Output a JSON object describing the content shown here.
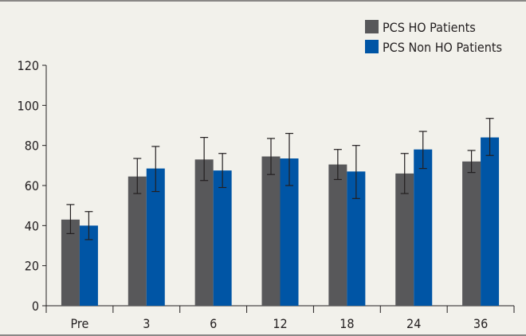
{
  "chart_data": {
    "type": "bar",
    "title": "",
    "xlabel": "",
    "ylabel": "",
    "categories": [
      "Pre",
      "3",
      "6",
      "12",
      "18",
      "24",
      "36"
    ],
    "ylim": [
      0,
      120
    ],
    "yticks": [
      0,
      20,
      40,
      60,
      80,
      100,
      120
    ],
    "grid": false,
    "legend_position": "top-right",
    "series": [
      {
        "name": "PCS HO Patients",
        "color": "#58585a",
        "values": [
          43,
          64.5,
          73,
          74.5,
          70.5,
          66,
          72
        ],
        "error_low": [
          36,
          56,
          62.5,
          65.5,
          63,
          56,
          66.5
        ],
        "error_high": [
          50.5,
          73.5,
          84,
          83.5,
          78,
          76,
          77.5
        ]
      },
      {
        "name": "PCS Non HO Patients",
        "color": "#0055a5",
        "values": [
          40,
          68.5,
          67.5,
          73.5,
          67,
          78,
          84
        ],
        "error_low": [
          33,
          57,
          59,
          60,
          53.5,
          68.5,
          75
        ],
        "error_high": [
          47,
          79.5,
          76,
          86,
          80,
          87,
          93.5
        ]
      }
    ]
  }
}
